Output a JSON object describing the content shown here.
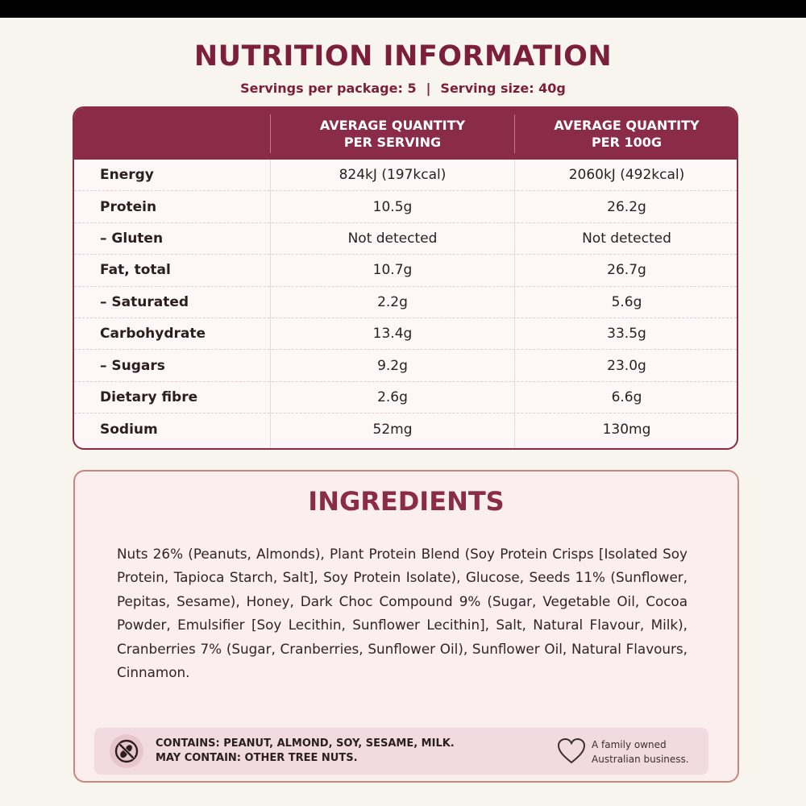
{
  "title": "NUTRITION INFORMATION",
  "servings": {
    "per_package": "Servings per package: 5",
    "separator": "|",
    "serving_size": "Serving size: 40g"
  },
  "table": {
    "headers": [
      "",
      "AVERAGE QUANTITY\nPER SERVING",
      "AVERAGE QUANTITY\nPER 100G"
    ],
    "rows": [
      [
        "Energy",
        "824kJ (197kcal)",
        "2060kJ (492kcal)"
      ],
      [
        "Protein",
        "10.5g",
        "26.2g"
      ],
      [
        "– Gluten",
        "Not detected",
        "Not detected"
      ],
      [
        "Fat, total",
        "10.7g",
        "26.7g"
      ],
      [
        "– Saturated",
        "2.2g",
        "5.6g"
      ],
      [
        "Carbohydrate",
        "13.4g",
        "33.5g"
      ],
      [
        "– Sugars",
        "9.2g",
        "23.0g"
      ],
      [
        "Dietary fibre",
        "2.6g",
        "6.6g"
      ],
      [
        "Sodium",
        "52mg",
        "130mg"
      ]
    ]
  },
  "ingredients": {
    "title": "INGREDIENTS",
    "text": "Nuts 26% (Peanuts, Almonds), Plant Protein Blend (Soy Protein Crisps [Isolated Soy Protein, Tapioca Starch, Salt], Soy Protein Isolate), Glucose, Seeds 11% (Sunflower, Pepitas, Sesame), Honey, Dark Choc Compound 9% (Sugar, Vegetable Oil, Cocoa Powder, Emulsifier [Soy Lecithin, Sunflower Lecithin], Salt, Natural Flavour, Milk), Cranberries 7% (Sugar, Cranberries, Sunflower Oil), Sunflower Oil, Natural Flavours, Cinnamon."
  },
  "allergens": {
    "contains": "CONTAINS: PEANUT, ALMOND, SOY, SESAME, MILK.",
    "may_contain": "MAY CONTAIN: OTHER TREE NUTS.",
    "icon": "no-allergen-icon"
  },
  "family": {
    "line1": "A family owned",
    "line2": "Australian business.",
    "icon": "heart-icon"
  },
  "colors": {
    "accent": "#8a2c47",
    "title": "#7b1f3c",
    "background": "#f8f4ee",
    "ingredients_bg": "#fbeeee",
    "allergy_bg": "#f1dbe1"
  }
}
